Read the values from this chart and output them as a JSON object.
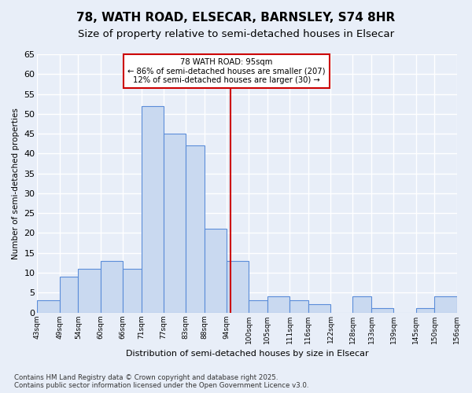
{
  "title1": "78, WATH ROAD, ELSECAR, BARNSLEY, S74 8HR",
  "title2": "Size of property relative to semi-detached houses in Elsecar",
  "xlabel": "Distribution of semi-detached houses by size in Elsecar",
  "ylabel": "Number of semi-detached properties",
  "footer1": "Contains HM Land Registry data © Crown copyright and database right 2025.",
  "footer2": "Contains public sector information licensed under the Open Government Licence v3.0.",
  "bins": [
    43,
    49,
    54,
    60,
    66,
    71,
    77,
    83,
    88,
    94,
    100,
    105,
    111,
    116,
    122,
    128,
    133,
    139,
    145,
    150,
    156
  ],
  "bin_labels": [
    "43sqm",
    "49sqm",
    "54sqm",
    "60sqm",
    "66sqm",
    "71sqm",
    "77sqm",
    "83sqm",
    "88sqm",
    "94sqm",
    "100sqm",
    "105sqm",
    "111sqm",
    "116sqm",
    "122sqm",
    "128sqm",
    "133sqm",
    "139sqm",
    "145sqm",
    "150sqm",
    "156sqm"
  ],
  "values": [
    3,
    9,
    11,
    13,
    11,
    52,
    45,
    42,
    21,
    13,
    3,
    4,
    3,
    2,
    0,
    4,
    1,
    0,
    1,
    4
  ],
  "bar_color": "#c9d9f0",
  "bar_edge_color": "#5b8dd9",
  "property_size": 95,
  "annotation_title": "78 WATH ROAD: 95sqm",
  "annotation_line1": "← 86% of semi-detached houses are smaller (207)",
  "annotation_line2": "12% of semi-detached houses are larger (30) →",
  "vline_color": "#cc0000",
  "annotation_box_color": "#cc0000",
  "ylim": [
    0,
    65
  ],
  "yticks": [
    0,
    5,
    10,
    15,
    20,
    25,
    30,
    35,
    40,
    45,
    50,
    55,
    60,
    65
  ],
  "background_color": "#e8eef8",
  "plot_bg_color": "#e8eef8",
  "grid_color": "#ffffff",
  "title_fontsize": 11,
  "subtitle_fontsize": 9.5
}
